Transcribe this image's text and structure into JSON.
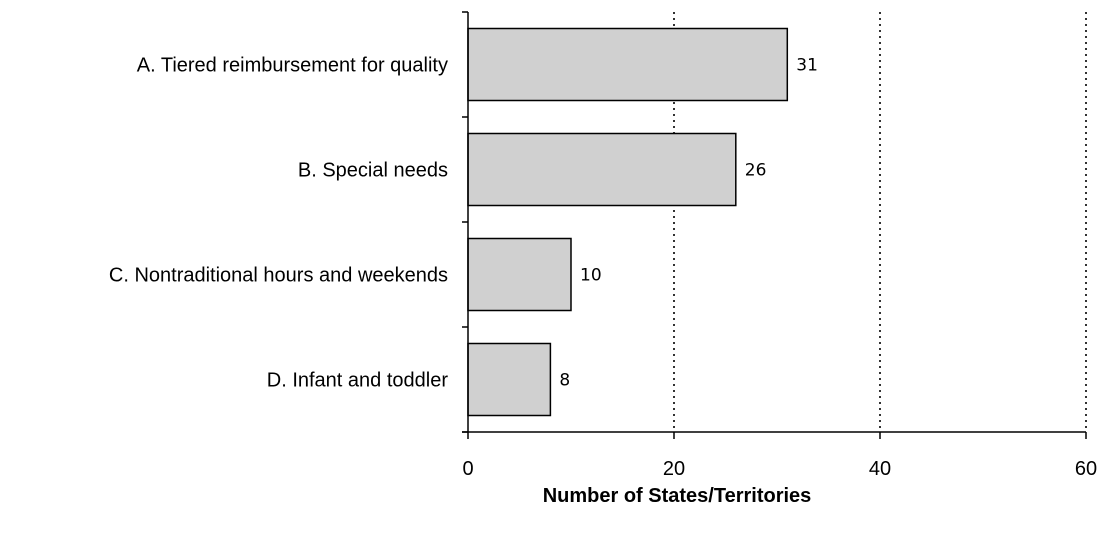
{
  "chart_data": {
    "type": "bar",
    "orientation": "horizontal",
    "categories": [
      "A. Tiered reimbursement for quality",
      "B. Special needs",
      "C. Nontraditional hours and weekends",
      "D. Infant and toddler"
    ],
    "values": [
      31,
      26,
      10,
      8
    ],
    "data_labels": [
      "31",
      "26",
      "10",
      "8"
    ],
    "title": "",
    "xlabel": "Number of States/Territories",
    "ylabel": "",
    "xlim": [
      0,
      60
    ],
    "xticks": [
      "0",
      "20",
      "40",
      "60"
    ],
    "gridlines": "vertical dotted",
    "bar_color": "#d0d0d0",
    "bar_edge_color": "#000000"
  }
}
